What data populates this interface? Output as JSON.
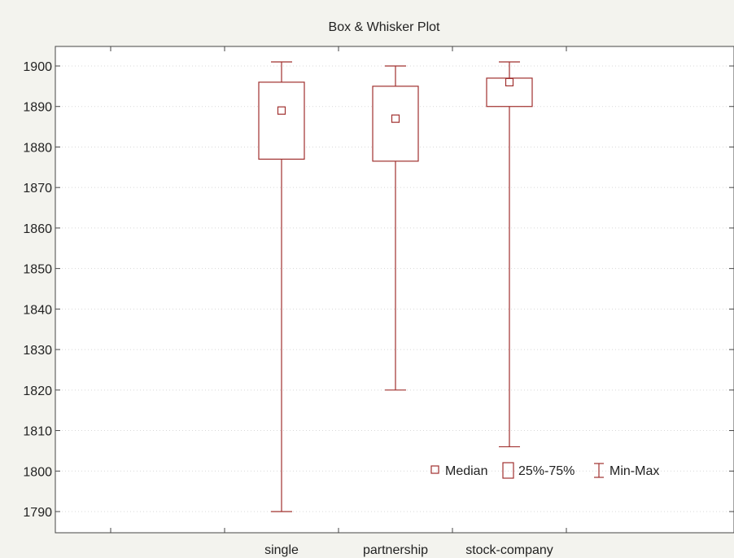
{
  "chart_data": {
    "type": "box",
    "title": "Box & Whisker Plot",
    "xlabel": "",
    "ylabel": "",
    "ylim": [
      1786,
      1905
    ],
    "y_ticks": [
      1790,
      1800,
      1810,
      1820,
      1830,
      1840,
      1850,
      1860,
      1870,
      1880,
      1890,
      1900
    ],
    "grid": true,
    "color": "#a0302e",
    "categories": [
      "single",
      "partnership",
      "stock-company"
    ],
    "series": [
      {
        "category": "single",
        "min": 1790,
        "q1": 1877,
        "median": 1889,
        "q3": 1896,
        "max": 1901
      },
      {
        "category": "partnership",
        "min": 1820,
        "q1": 1876.5,
        "median": 1887,
        "q3": 1895,
        "max": 1900
      },
      {
        "category": "stock-company",
        "min": 1806,
        "q1": 1890,
        "median": 1896,
        "q3": 1897,
        "max": 1901
      }
    ],
    "legend": {
      "placement": "bottom-right",
      "items": [
        {
          "label": "Median",
          "symbol": "median"
        },
        {
          "label": "25%-75%",
          "symbol": "box"
        },
        {
          "label": "Min-Max",
          "symbol": "whisker"
        }
      ]
    }
  }
}
